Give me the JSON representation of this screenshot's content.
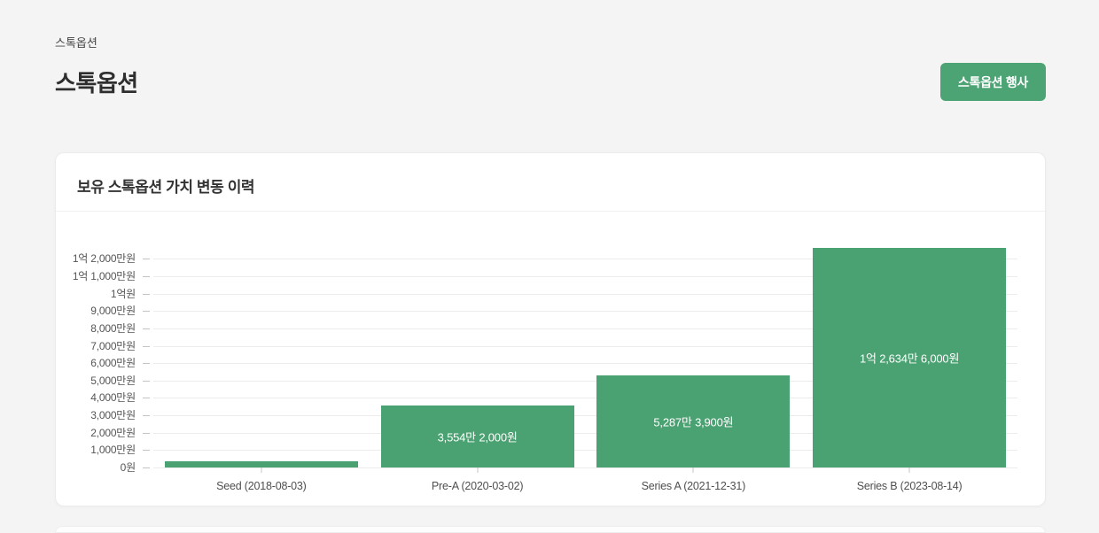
{
  "page": {
    "breadcrumb": "스톡옵션",
    "title": "스톡옵션",
    "action_button_label": "스톡옵션 행사"
  },
  "card": {
    "title": "보유 스톡옵션 가치 변동 이력"
  },
  "colors": {
    "page_background": "#f4f4f5",
    "card_background": "#ffffff",
    "bar_green": "#4aa171",
    "button_green": "#4ca475",
    "grid_line": "#ececec",
    "axis_tick": "#c4c4c4",
    "axis_label_text": "#555555",
    "bar_value_text": "#ffffff"
  },
  "chart_data": {
    "type": "bar",
    "title": "보유 스톡옵션 가치 변동 이력",
    "unit": "KRW",
    "categories": [
      "Seed (2018-08-03)",
      "Pre-A (2020-03-02)",
      "Series A (2021-12-31)",
      "Series B (2023-08-14)"
    ],
    "values": [
      3400000,
      35542000,
      52873900,
      126346000
    ],
    "value_labels": [
      "",
      "3,554만 2,000원",
      "5,287만 3,900원",
      "1억 2,634만 6,000원"
    ],
    "value_estimated": [
      true,
      false,
      false,
      false
    ],
    "bar_names": [
      "bar-seed",
      "bar-pre-a",
      "bar-series-a",
      "bar-series-b"
    ],
    "ylim": [
      0,
      126346000
    ],
    "y_tick_values": [
      0,
      10000000,
      20000000,
      30000000,
      40000000,
      50000000,
      60000000,
      70000000,
      80000000,
      90000000,
      100000000,
      110000000,
      120000000
    ],
    "y_tick_labels": [
      "0원",
      "1,000만원",
      "2,000만원",
      "3,000만원",
      "4,000만원",
      "5,000만원",
      "6,000만원",
      "7,000만원",
      "8,000만원",
      "9,000만원",
      "1억원",
      "1억 1,000만원",
      "1억 2,000만원"
    ],
    "grid": true,
    "legend": false,
    "bar_color": "#4aa171",
    "xlabel": "",
    "ylabel": ""
  }
}
